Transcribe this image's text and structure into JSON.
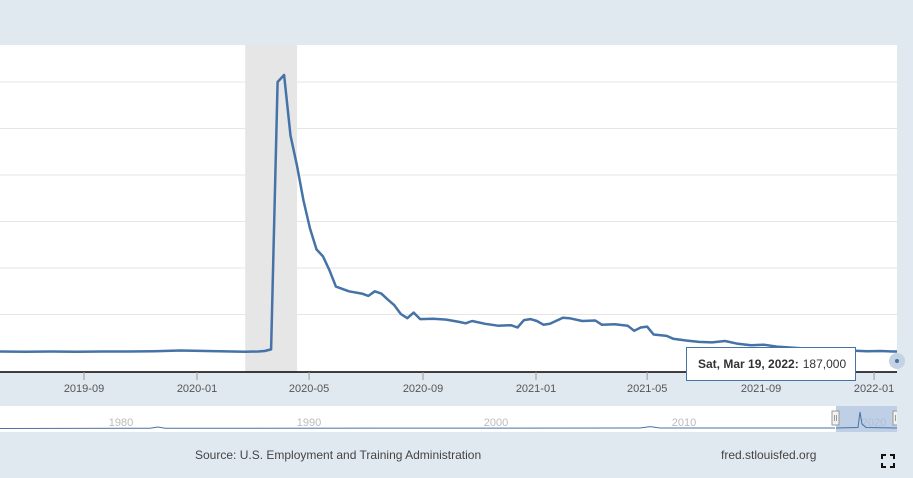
{
  "chart_data": {
    "type": "line",
    "title": "",
    "xlabel": "",
    "ylabel": "",
    "x_ticks": [
      "2019-09",
      "2020-01",
      "2020-05",
      "2020-09",
      "2021-01",
      "2021-05",
      "2021-09",
      "2022-01"
    ],
    "recession": {
      "start": "2020-02-22",
      "end": "2020-04-18"
    },
    "grid": "horizontal",
    "series": [
      {
        "color": "#4572a7",
        "points": [
          [
            "2019-05-04",
            200000
          ],
          [
            "2019-06-01",
            205000
          ],
          [
            "2019-06-29",
            200000
          ],
          [
            "2019-07-27",
            205000
          ],
          [
            "2019-08-24",
            200000
          ],
          [
            "2019-09-21",
            205000
          ],
          [
            "2019-10-19",
            205000
          ],
          [
            "2019-11-16",
            210000
          ],
          [
            "2019-12-14",
            225000
          ],
          [
            "2020-01-11",
            215000
          ],
          [
            "2020-02-08",
            205000
          ],
          [
            "2020-02-22",
            200000
          ],
          [
            "2020-03-07",
            205000
          ],
          [
            "2020-03-14",
            215000
          ],
          [
            "2020-03-21",
            250000
          ],
          [
            "2020-03-28",
            6000000
          ],
          [
            "2020-04-04",
            6150000
          ],
          [
            "2020-04-11",
            4850000
          ],
          [
            "2020-04-18",
            4200000
          ],
          [
            "2020-04-25",
            3450000
          ],
          [
            "2020-05-02",
            2850000
          ],
          [
            "2020-05-09",
            2400000
          ],
          [
            "2020-05-16",
            2250000
          ],
          [
            "2020-05-23",
            1950000
          ],
          [
            "2020-05-30",
            1600000
          ],
          [
            "2020-06-13",
            1500000
          ],
          [
            "2020-06-27",
            1450000
          ],
          [
            "2020-07-04",
            1400000
          ],
          [
            "2020-07-11",
            1500000
          ],
          [
            "2020-07-18",
            1450000
          ],
          [
            "2020-07-25",
            1320000
          ],
          [
            "2020-08-01",
            1200000
          ],
          [
            "2020-08-08",
            1010000
          ],
          [
            "2020-08-15",
            920000
          ],
          [
            "2020-08-22",
            1040000
          ],
          [
            "2020-08-29",
            900000
          ],
          [
            "2020-09-12",
            910000
          ],
          [
            "2020-09-26",
            890000
          ],
          [
            "2020-10-10",
            840000
          ],
          [
            "2020-10-17",
            810000
          ],
          [
            "2020-10-24",
            860000
          ],
          [
            "2020-11-07",
            800000
          ],
          [
            "2020-11-21",
            760000
          ],
          [
            "2020-12-05",
            770000
          ],
          [
            "2020-12-12",
            720000
          ],
          [
            "2020-12-19",
            880000
          ],
          [
            "2020-12-26",
            900000
          ],
          [
            "2021-01-02",
            860000
          ],
          [
            "2021-01-09",
            780000
          ],
          [
            "2021-01-16",
            800000
          ],
          [
            "2021-01-30",
            930000
          ],
          [
            "2021-02-06",
            920000
          ],
          [
            "2021-02-20",
            860000
          ],
          [
            "2021-03-06",
            870000
          ],
          [
            "2021-03-13",
            780000
          ],
          [
            "2021-03-27",
            790000
          ],
          [
            "2021-04-10",
            760000
          ],
          [
            "2021-04-17",
            650000
          ],
          [
            "2021-04-24",
            720000
          ],
          [
            "2021-05-01",
            740000
          ],
          [
            "2021-05-08",
            570000
          ],
          [
            "2021-05-22",
            540000
          ],
          [
            "2021-05-29",
            480000
          ],
          [
            "2021-06-12",
            440000
          ],
          [
            "2021-06-26",
            410000
          ],
          [
            "2021-07-10",
            400000
          ],
          [
            "2021-07-24",
            430000
          ],
          [
            "2021-08-07",
            370000
          ],
          [
            "2021-08-21",
            340000
          ],
          [
            "2021-09-04",
            350000
          ],
          [
            "2021-09-18",
            310000
          ],
          [
            "2021-10-02",
            290000
          ],
          [
            "2021-10-16",
            270000
          ],
          [
            "2021-10-30",
            250000
          ],
          [
            "2021-11-13",
            240000
          ],
          [
            "2021-11-27",
            230000
          ],
          [
            "2021-12-11",
            220000
          ],
          [
            "2021-12-25",
            210000
          ],
          [
            "2022-01-08",
            215000
          ],
          [
            "2022-01-22",
            205000
          ],
          [
            "2022-02-05",
            200000
          ],
          [
            "2022-02-19",
            195000
          ],
          [
            "2022-03-05",
            190000
          ],
          [
            "2022-03-19",
            187000
          ]
        ]
      }
    ]
  },
  "tooltip": {
    "date": "Sat, Mar 19, 2022:",
    "value": "187,000"
  },
  "navigator": {
    "labels": [
      "1980",
      "1990",
      "2000",
      "2010",
      "2020"
    ],
    "color": "#4572a7"
  },
  "footer": {
    "source": "Source: U.S. Employment and Training Administration",
    "site": "fred.stlouisfed.org"
  }
}
